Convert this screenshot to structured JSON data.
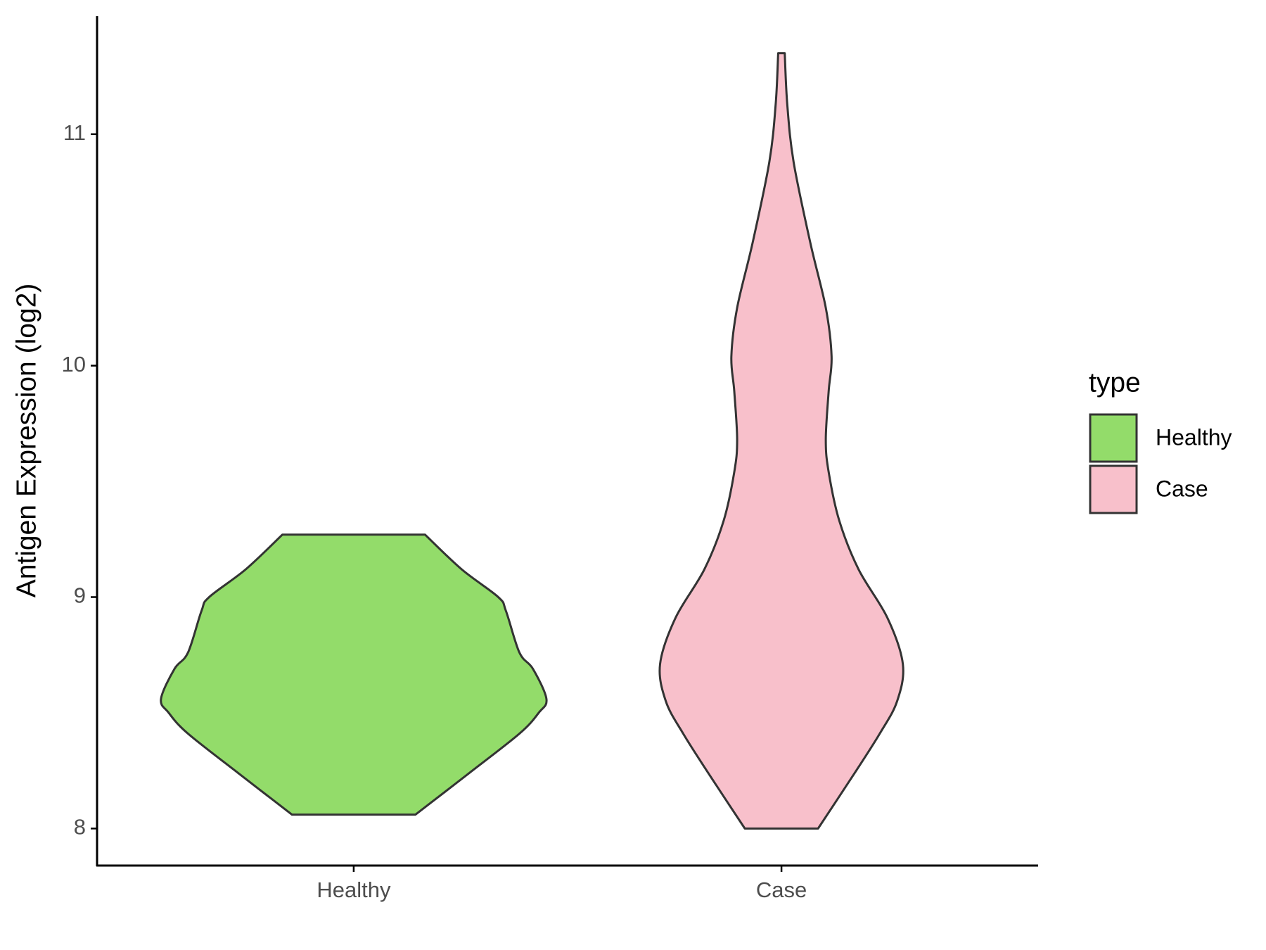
{
  "chart_data": {
    "type": "violin",
    "y_label": "Antigen Expression (log2)",
    "categories": [
      "Healthy",
      "Case"
    ],
    "ylim": [
      7.84,
      11.51
    ],
    "yticks": [
      8,
      9,
      10,
      11
    ],
    "legend_title": "type",
    "legend": "right",
    "series": [
      {
        "name": "Healthy",
        "color": "#93dc6a",
        "y": [
          8.06,
          8.24,
          8.41,
          8.5,
          8.56,
          8.69,
          8.76,
          8.94,
          9.0,
          9.12,
          9.27
        ],
        "width": [
          0.32,
          0.6,
          0.86,
          0.96,
          1.0,
          0.93,
          0.86,
          0.79,
          0.75,
          0.56,
          0.37
        ]
      },
      {
        "name": "Case",
        "color": "#f8c0cb",
        "y": [
          8.0,
          8.24,
          8.41,
          8.55,
          8.71,
          8.91,
          9.12,
          9.33,
          9.54,
          9.68,
          9.89,
          10.04,
          10.25,
          10.53,
          10.88,
          11.13,
          11.35
        ],
        "width": [
          0.19,
          0.38,
          0.51,
          0.6,
          0.63,
          0.55,
          0.4,
          0.3,
          0.245,
          0.23,
          0.245,
          0.26,
          0.23,
          0.15,
          0.063,
          0.03,
          0.017
        ]
      }
    ]
  }
}
